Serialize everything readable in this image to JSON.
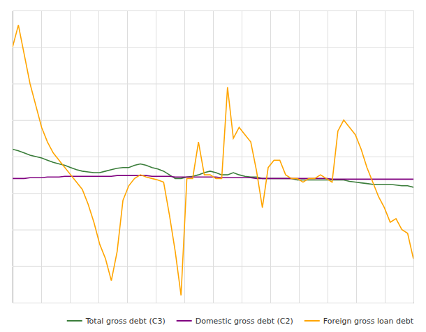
{
  "chart_data": {
    "type": "line",
    "x": [
      0,
      1,
      2,
      3,
      4,
      5,
      6,
      7,
      8,
      9,
      10,
      11,
      12,
      13,
      14,
      15,
      16,
      17,
      18,
      19,
      20,
      21,
      22,
      23,
      24,
      25,
      26,
      27,
      28,
      29,
      30,
      31,
      32,
      33,
      34,
      35,
      36,
      37,
      38,
      39,
      40,
      41,
      42,
      43,
      44,
      45,
      46,
      47,
      48,
      49,
      50,
      51,
      52,
      53,
      54,
      55,
      56,
      57,
      58,
      59,
      60,
      61,
      62,
      63,
      64,
      65,
      66,
      67,
      68,
      69
    ],
    "series": [
      {
        "name": "Total gross debt (C3)",
        "color": "#3a7d3a",
        "values": [
          6.0,
          5.8,
          5.5,
          5.2,
          5.0,
          4.8,
          4.5,
          4.2,
          4.0,
          3.8,
          3.5,
          3.2,
          3.0,
          2.9,
          2.8,
          2.8,
          3.0,
          3.2,
          3.4,
          3.5,
          3.5,
          3.8,
          4.0,
          3.8,
          3.5,
          3.3,
          3.0,
          2.5,
          2.0,
          2.0,
          2.2,
          2.3,
          2.5,
          2.8,
          3.0,
          2.8,
          2.5,
          2.5,
          2.8,
          2.5,
          2.3,
          2.2,
          2.2,
          2.0,
          2.0,
          2.0,
          2.0,
          2.0,
          2.0,
          1.8,
          1.8,
          1.8,
          1.8,
          1.8,
          1.8,
          1.8,
          1.8,
          1.8,
          1.6,
          1.5,
          1.4,
          1.3,
          1.2,
          1.2,
          1.2,
          1.2,
          1.1,
          1.0,
          1.0,
          0.8
        ]
      },
      {
        "name": "Domestic gross debt (C2)",
        "color": "#800080",
        "values": [
          2.0,
          2.0,
          2.0,
          2.1,
          2.1,
          2.1,
          2.2,
          2.2,
          2.2,
          2.3,
          2.3,
          2.3,
          2.3,
          2.3,
          2.3,
          2.3,
          2.3,
          2.3,
          2.4,
          2.4,
          2.4,
          2.4,
          2.4,
          2.4,
          2.3,
          2.3,
          2.3,
          2.3,
          2.2,
          2.2,
          2.2,
          2.2,
          2.2,
          2.2,
          2.2,
          2.2,
          2.1,
          2.1,
          2.1,
          2.1,
          2.1,
          2.1,
          2.0,
          2.0,
          2.0,
          2.0,
          2.0,
          2.0,
          2.0,
          2.0,
          2.0,
          2.0,
          2.0,
          2.0,
          2.0,
          1.9,
          1.9,
          1.9,
          1.9,
          1.9,
          1.9,
          1.9,
          1.9,
          1.9,
          1.9,
          1.9,
          1.9,
          1.9,
          1.9,
          1.9
        ]
      },
      {
        "name": "Foreign gross loan debt",
        "color": "#ffa500",
        "values": [
          20.0,
          23.0,
          19.0,
          15.0,
          12.0,
          9.0,
          7.0,
          5.5,
          4.5,
          3.5,
          2.5,
          1.5,
          0.5,
          -1.5,
          -4.0,
          -7.0,
          -9.0,
          -12.0,
          -8.0,
          -1.0,
          1.0,
          2.0,
          2.5,
          2.2,
          2.0,
          1.8,
          1.5,
          -3.0,
          -8.0,
          -14.0,
          2.0,
          2.0,
          7.0,
          2.5,
          2.5,
          2.0,
          2.0,
          14.5,
          7.5,
          9.0,
          8.0,
          7.0,
          3.0,
          -2.0,
          3.5,
          4.5,
          4.5,
          2.5,
          2.0,
          2.0,
          1.5,
          2.0,
          2.0,
          2.5,
          2.0,
          1.5,
          8.5,
          10.0,
          9.0,
          8.0,
          6.0,
          3.5,
          1.5,
          -0.5,
          -2.0,
          -4.0,
          -3.5,
          -5.0,
          -5.5,
          -9.0
        ]
      }
    ],
    "xlim": [
      0,
      69
    ],
    "xticks": [
      0,
      4.928571428571429,
      9.857142857142858,
      14.785714285714286,
      19.714285714285715,
      24.642857142857142,
      29.571428571428573,
      34.5,
      39.42857142857143,
      44.357142857142854,
      49.285714285714285,
      54.214285714285715,
      59.142857142857146,
      64.07142857142857,
      69
    ],
    "ylim": [
      -15,
      25
    ],
    "yticks": [
      -15,
      -10,
      -5,
      0,
      5,
      10,
      15,
      20,
      25
    ],
    "grid": true,
    "tick_labels": false,
    "legend": "lower right"
  }
}
